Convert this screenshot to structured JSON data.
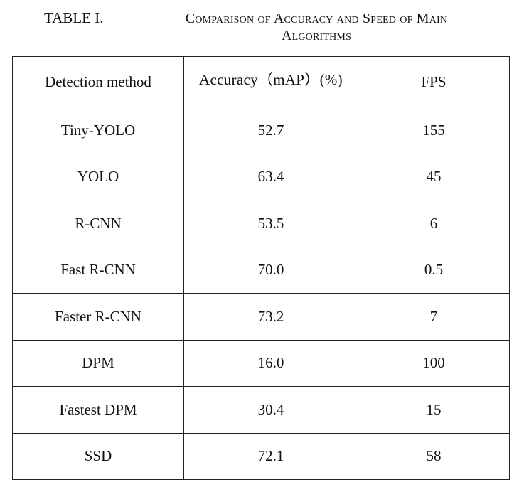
{
  "caption": {
    "label": "TABLE I.",
    "title": "Comparison of Accuracy and Speed of Main Algorithms"
  },
  "table": {
    "headers": [
      "Detection method",
      "Accuracy（mAP）(%)",
      "FPS"
    ],
    "rows": [
      [
        "Tiny-YOLO",
        "52.7",
        "155"
      ],
      [
        "YOLO",
        "63.4",
        "45"
      ],
      [
        "R-CNN",
        "53.5",
        "6"
      ],
      [
        "Fast R-CNN",
        "70.0",
        "0.5"
      ],
      [
        "Faster R-CNN",
        "73.2",
        "7"
      ],
      [
        "DPM",
        "16.0",
        "100"
      ],
      [
        "Fastest DPM",
        "30.4",
        "15"
      ],
      [
        "SSD",
        "72.1",
        "58"
      ]
    ]
  }
}
